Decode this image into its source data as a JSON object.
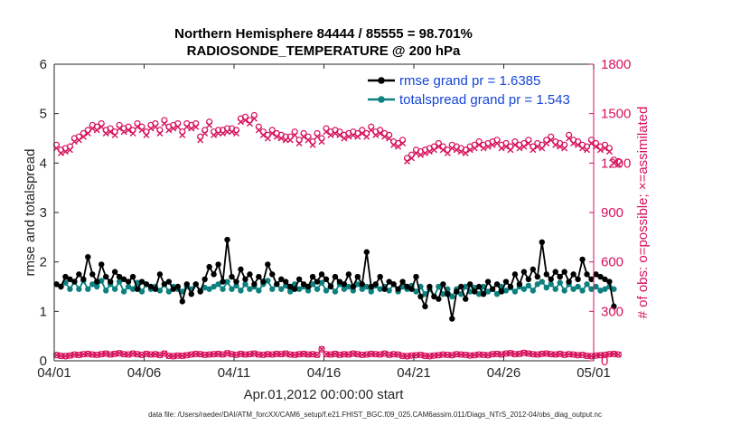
{
  "chart_data": {
    "type": "line",
    "title_line1": "Northern Hemisphere 84444 / 85555 = 98.701%",
    "title_line2": "RADIOSONDE_TEMPERATURE @ 200 hPa",
    "xlabel": "Apr.01,2012 00:00:00 start",
    "ylabel_left": "rmse and totalspread",
    "ylabel_right": "# of obs: o=possible; ×=assimilated",
    "xlim": [
      0,
      30
    ],
    "ylim_left": [
      0,
      6
    ],
    "ylim_right": [
      0,
      1800
    ],
    "x_ticks": [
      {
        "x": 0,
        "label": "04/01"
      },
      {
        "x": 5,
        "label": "04/06"
      },
      {
        "x": 10,
        "label": "04/11"
      },
      {
        "x": 15,
        "label": "04/16"
      },
      {
        "x": 20,
        "label": "04/21"
      },
      {
        "x": 25,
        "label": "04/26"
      },
      {
        "x": 30,
        "label": "05/01"
      }
    ],
    "y_ticks_left": [
      "0",
      "1",
      "2",
      "3",
      "4",
      "5",
      "6"
    ],
    "y_ticks_right": [
      "0",
      "300",
      "600",
      "900",
      "1200",
      "1500",
      "1800"
    ],
    "legend": [
      {
        "label": "rmse grand pr = 1.6385",
        "color": "#000000"
      },
      {
        "label": "totalspread grand pr = 1.543",
        "color": "#0d8080"
      }
    ],
    "footer": "data file: /Users/raeder/DAI/ATM_forcXX/CAM6_setup/f.e21.FHIST_BGC.f09_025.CAM6assim.011/Diags_NTrS_2012-04/obs_diag_output.nc",
    "colors": {
      "rmse": "#000000",
      "spread": "#0d8080",
      "obs": "#d6115c",
      "legend_text": "#1446d6",
      "right_axis": "#d6115c"
    },
    "series": [
      {
        "name": "rmse",
        "axis": "left",
        "x_start": 0.125,
        "x_step": 0.25,
        "values": [
          1.55,
          1.5,
          1.7,
          1.65,
          1.6,
          1.75,
          1.65,
          2.1,
          1.75,
          1.6,
          1.95,
          1.7,
          1.6,
          1.8,
          1.7,
          1.65,
          1.6,
          1.7,
          1.45,
          1.6,
          1.55,
          1.5,
          1.45,
          1.75,
          1.55,
          1.6,
          1.45,
          1.5,
          1.2,
          1.55,
          1.35,
          1.55,
          1.4,
          1.65,
          1.9,
          1.75,
          1.95,
          1.6,
          2.45,
          1.7,
          1.6,
          1.85,
          1.65,
          1.75,
          1.55,
          1.7,
          1.6,
          1.95,
          1.75,
          1.55,
          1.65,
          1.6,
          1.5,
          1.45,
          1.65,
          1.55,
          1.5,
          1.7,
          1.6,
          1.75,
          1.65,
          1.5,
          1.7,
          1.6,
          1.55,
          1.75,
          1.5,
          1.7,
          1.55,
          2.2,
          1.5,
          1.55,
          1.7,
          1.45,
          1.6,
          1.55,
          1.45,
          1.6,
          1.5,
          1.45,
          1.7,
          1.3,
          1.1,
          1.5,
          1.3,
          1.25,
          1.55,
          1.35,
          0.85,
          1.4,
          1.5,
          1.25,
          1.55,
          1.4,
          1.5,
          1.35,
          1.6,
          1.45,
          1.55,
          1.4,
          1.6,
          1.5,
          1.75,
          1.55,
          1.8,
          1.65,
          1.85,
          1.7,
          2.4,
          1.75,
          1.65,
          1.8,
          1.7,
          1.8,
          1.6,
          1.75,
          1.65,
          2.05,
          1.75,
          1.65,
          1.75,
          1.7,
          1.65,
          1.6,
          1.1
        ]
      },
      {
        "name": "totalspread",
        "axis": "left",
        "x_start": 0.125,
        "x_step": 0.25,
        "values": [
          1.55,
          1.5,
          1.58,
          1.45,
          1.6,
          1.45,
          1.62,
          1.45,
          1.55,
          1.5,
          1.62,
          1.42,
          1.55,
          1.45,
          1.6,
          1.4,
          1.5,
          1.45,
          1.58,
          1.4,
          1.55,
          1.45,
          1.5,
          1.42,
          1.55,
          1.4,
          1.5,
          1.45,
          1.4,
          1.5,
          1.45,
          1.55,
          1.42,
          1.48,
          1.45,
          1.5,
          1.55,
          1.45,
          1.6,
          1.45,
          1.52,
          1.42,
          1.55,
          1.45,
          1.5,
          1.42,
          1.55,
          1.62,
          1.45,
          1.55,
          1.45,
          1.52,
          1.4,
          1.55,
          1.45,
          1.5,
          1.42,
          1.55,
          1.45,
          1.58,
          1.42,
          1.52,
          1.4,
          1.55,
          1.45,
          1.5,
          1.42,
          1.55,
          1.45,
          1.5,
          1.4,
          1.52,
          1.45,
          1.5,
          1.42,
          1.55,
          1.4,
          1.5,
          1.45,
          1.52,
          1.4,
          1.5,
          1.35,
          1.45,
          1.3,
          1.5,
          1.35,
          1.45,
          1.3,
          1.45,
          1.35,
          1.5,
          1.4,
          1.48,
          1.35,
          1.5,
          1.4,
          1.45,
          1.35,
          1.5,
          1.42,
          1.48,
          1.4,
          1.5,
          1.45,
          1.52,
          1.42,
          1.55,
          1.6,
          1.48,
          1.55,
          1.45,
          1.58,
          1.42,
          1.55,
          1.45,
          1.5,
          1.42,
          1.55,
          1.45,
          1.5,
          1.42,
          1.45,
          1.5,
          1.45
        ]
      },
      {
        "name": "possible",
        "axis": "right",
        "x_start": 0.125,
        "x_step": 0.25,
        "values": [
          1310,
          1280,
          1290,
          1300,
          1350,
          1360,
          1380,
          1400,
          1430,
          1420,
          1440,
          1400,
          1410,
          1390,
          1430,
          1410,
          1420,
          1400,
          1440,
          1420,
          1390,
          1430,
          1440,
          1400,
          1460,
          1420,
          1430,
          1440,
          1390,
          1440,
          1430,
          1440,
          1360,
          1400,
          1450,
          1390,
          1400,
          1400,
          1410,
          1410,
          1400,
          1470,
          1480,
          1460,
          1490,
          1420,
          1390,
          1370,
          1400,
          1380,
          1370,
          1360,
          1360,
          1390,
          1340,
          1380,
          1360,
          1330,
          1380,
          1350,
          1410,
          1390,
          1400,
          1390,
          1370,
          1380,
          1390,
          1380,
          1400,
          1380,
          1420,
          1390,
          1400,
          1380,
          1370,
          1330,
          1320,
          1340,
          1230,
          1250,
          1280,
          1270,
          1280,
          1290,
          1300,
          1320,
          1300,
          1280,
          1310,
          1300,
          1290,
          1280,
          1300,
          1310,
          1330,
          1310,
          1320,
          1330,
          1340,
          1310,
          1320,
          1300,
          1330,
          1310,
          1320,
          1340,
          1300,
          1320,
          1310,
          1340,
          1360,
          1330,
          1320,
          1310,
          1370,
          1340,
          1330,
          1310,
          1300,
          1340,
          1320,
          1300,
          1310,
          1290,
          1220,
          1210
        ]
      },
      {
        "name": "assimilated",
        "axis": "right",
        "x_start": 0.125,
        "x_step": 0.25,
        "values": [
          1290,
          1260,
          1270,
          1280,
          1330,
          1340,
          1360,
          1380,
          1410,
          1400,
          1420,
          1380,
          1390,
          1370,
          1410,
          1390,
          1400,
          1380,
          1420,
          1400,
          1370,
          1410,
          1420,
          1380,
          1440,
          1400,
          1410,
          1420,
          1370,
          1420,
          1410,
          1420,
          1340,
          1380,
          1430,
          1370,
          1380,
          1380,
          1390,
          1390,
          1380,
          1450,
          1460,
          1440,
          1470,
          1400,
          1370,
          1350,
          1380,
          1360,
          1350,
          1340,
          1340,
          1370,
          1320,
          1360,
          1340,
          1310,
          1360,
          1330,
          1390,
          1370,
          1380,
          1370,
          1350,
          1360,
          1370,
          1360,
          1380,
          1360,
          1400,
          1370,
          1380,
          1360,
          1350,
          1310,
          1300,
          1320,
          1210,
          1230,
          1260,
          1250,
          1260,
          1270,
          1280,
          1300,
          1280,
          1260,
          1290,
          1280,
          1270,
          1260,
          1280,
          1290,
          1310,
          1290,
          1300,
          1310,
          1320,
          1290,
          1300,
          1280,
          1310,
          1290,
          1300,
          1320,
          1280,
          1300,
          1290,
          1320,
          1340,
          1310,
          1300,
          1290,
          1350,
          1320,
          1310,
          1290,
          1280,
          1320,
          1300,
          1280,
          1290,
          1270,
          1200,
          1190
        ]
      },
      {
        "name": "possible_low",
        "axis": "right",
        "x_start": 0.125,
        "x_step": 0.25,
        "values": [
          35,
          30,
          28,
          32,
          38,
          35,
          40,
          42,
          38,
          36,
          40,
          44,
          38,
          42,
          46,
          40,
          38,
          44,
          40,
          36,
          42,
          38,
          40,
          35,
          44,
          30,
          28,
          32,
          30,
          34,
          38,
          42,
          40,
          36,
          38,
          40,
          42,
          38,
          46,
          40,
          36,
          42,
          38,
          40,
          44,
          38,
          36,
          40,
          38,
          42,
          40,
          44,
          38,
          36,
          40,
          42,
          38,
          40,
          36,
          70,
          40,
          38,
          42,
          36,
          40,
          38,
          44,
          40,
          36,
          38,
          42,
          40,
          38,
          44,
          36,
          40,
          38,
          30,
          28,
          32,
          34,
          36,
          30,
          28,
          32,
          34,
          38,
          36,
          34,
          40,
          38,
          36,
          32,
          34,
          38,
          36,
          34,
          40,
          42,
          38,
          44,
          46,
          40,
          42,
          48,
          44,
          40,
          38,
          42,
          44,
          40,
          38,
          42,
          36,
          40,
          38,
          34,
          36,
          30,
          28,
          32,
          34,
          36,
          40,
          42,
          38
        ]
      }
    ]
  }
}
